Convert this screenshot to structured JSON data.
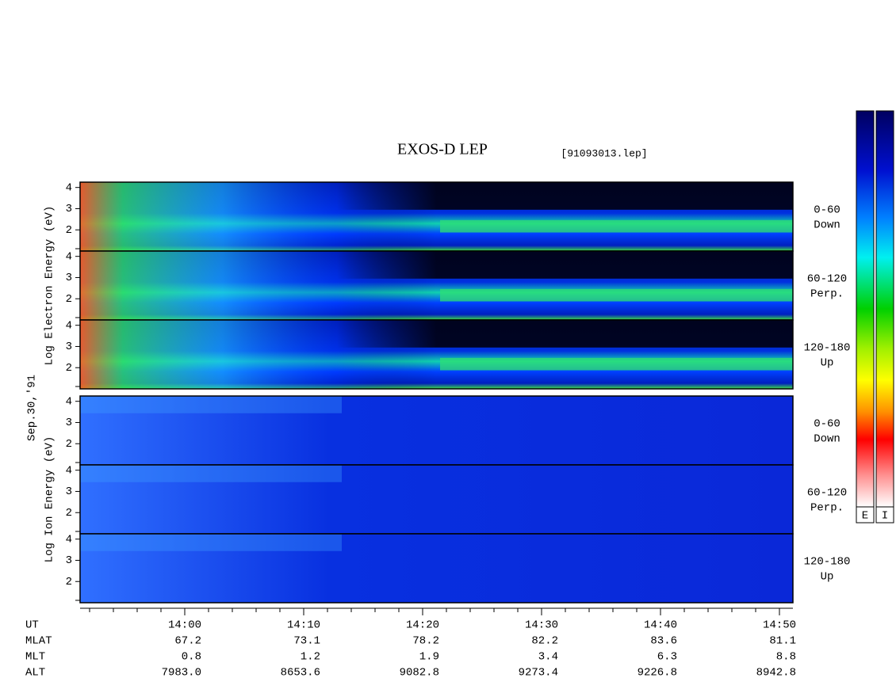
{
  "chart_data": {
    "type": "spectrogram",
    "title": "EXOS-D LEP",
    "subtitle": "[91093013.lep]",
    "date_label": "Sep.30,'91",
    "ylim": [
      1,
      4.25
    ],
    "yticks": [
      2,
      3,
      4
    ],
    "groups": [
      {
        "ylabel": "Log Electron Energy (eV)",
        "kind": "electron",
        "panels": [
          {
            "label": [
              "0-60",
              "Down"
            ]
          },
          {
            "label": [
              "60-120",
              "Perp."
            ]
          },
          {
            "label": [
              "120-180",
              "Up"
            ]
          }
        ]
      },
      {
        "ylabel": "Log Ion Energy (eV)",
        "kind": "ion",
        "panels": [
          {
            "label": [
              "0-60",
              "Down"
            ]
          },
          {
            "label": [
              "60-120",
              "Perp."
            ]
          },
          {
            "label": [
              "120-180",
              "Up"
            ]
          }
        ]
      }
    ],
    "colorbars": [
      "E",
      "I"
    ],
    "readout": [
      {
        "label": "UT",
        "values": [
          "14:00",
          "14:10",
          "14:20",
          "14:30",
          "14:40",
          "14:50"
        ]
      },
      {
        "label": "MLAT",
        "values": [
          "67.2",
          "73.1",
          "78.2",
          "82.2",
          "83.6",
          "81.1"
        ]
      },
      {
        "label": "MLT",
        "values": [
          "0.8",
          "1.2",
          "1.9",
          "3.4",
          "6.3",
          "8.8"
        ]
      },
      {
        "label": "ALT",
        "values": [
          "7983.0",
          "8653.6",
          "9082.8",
          "9273.4",
          "9226.8",
          "8942.8"
        ]
      }
    ]
  }
}
